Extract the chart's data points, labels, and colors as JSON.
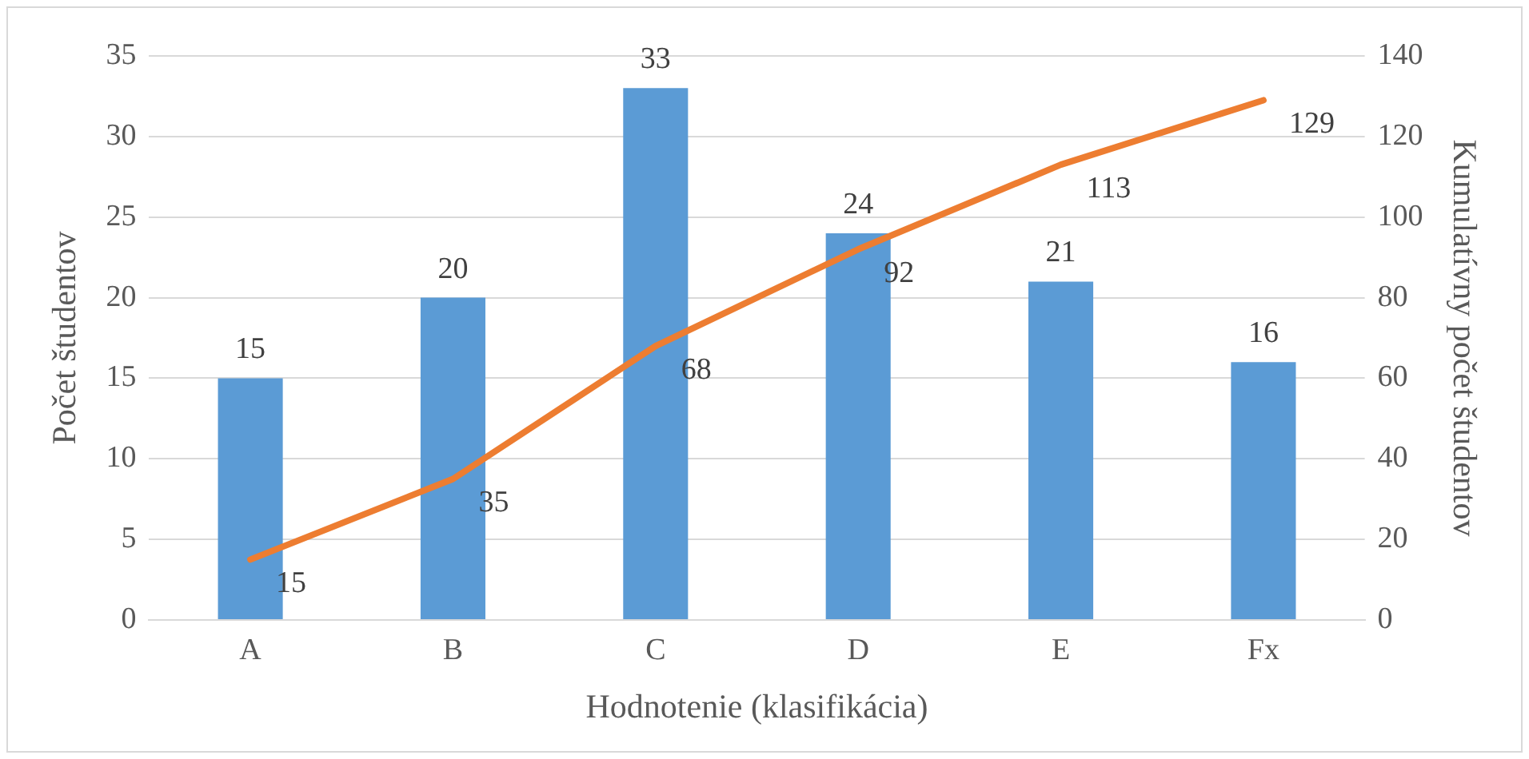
{
  "chart_data": {
    "type": "bar",
    "xlabel": "Hodnotenie (klasifikácia)",
    "ylabel": "Počet študentov",
    "y2label": "Kumulatívny počet študentov",
    "categories": [
      "A",
      "B",
      "C",
      "D",
      "E",
      "Fx"
    ],
    "series": [
      {
        "color": "#5b9bd5",
        "values": [
          15,
          20,
          33,
          24,
          21,
          16
        ]
      },
      {
        "type": "line",
        "axis": "y2",
        "color": "#ed7d31",
        "values": [
          15,
          35,
          68,
          92,
          113,
          129
        ]
      }
    ],
    "ylim": [
      0,
      35
    ],
    "yticks": [
      0,
      5,
      10,
      15,
      20,
      25,
      30,
      35
    ],
    "y2lim": [
      0,
      140
    ],
    "y2ticks": [
      0,
      20,
      40,
      60,
      80,
      100,
      120,
      140
    ],
    "grid": "y",
    "legend": false,
    "marker": "none",
    "data_labels": true
  }
}
